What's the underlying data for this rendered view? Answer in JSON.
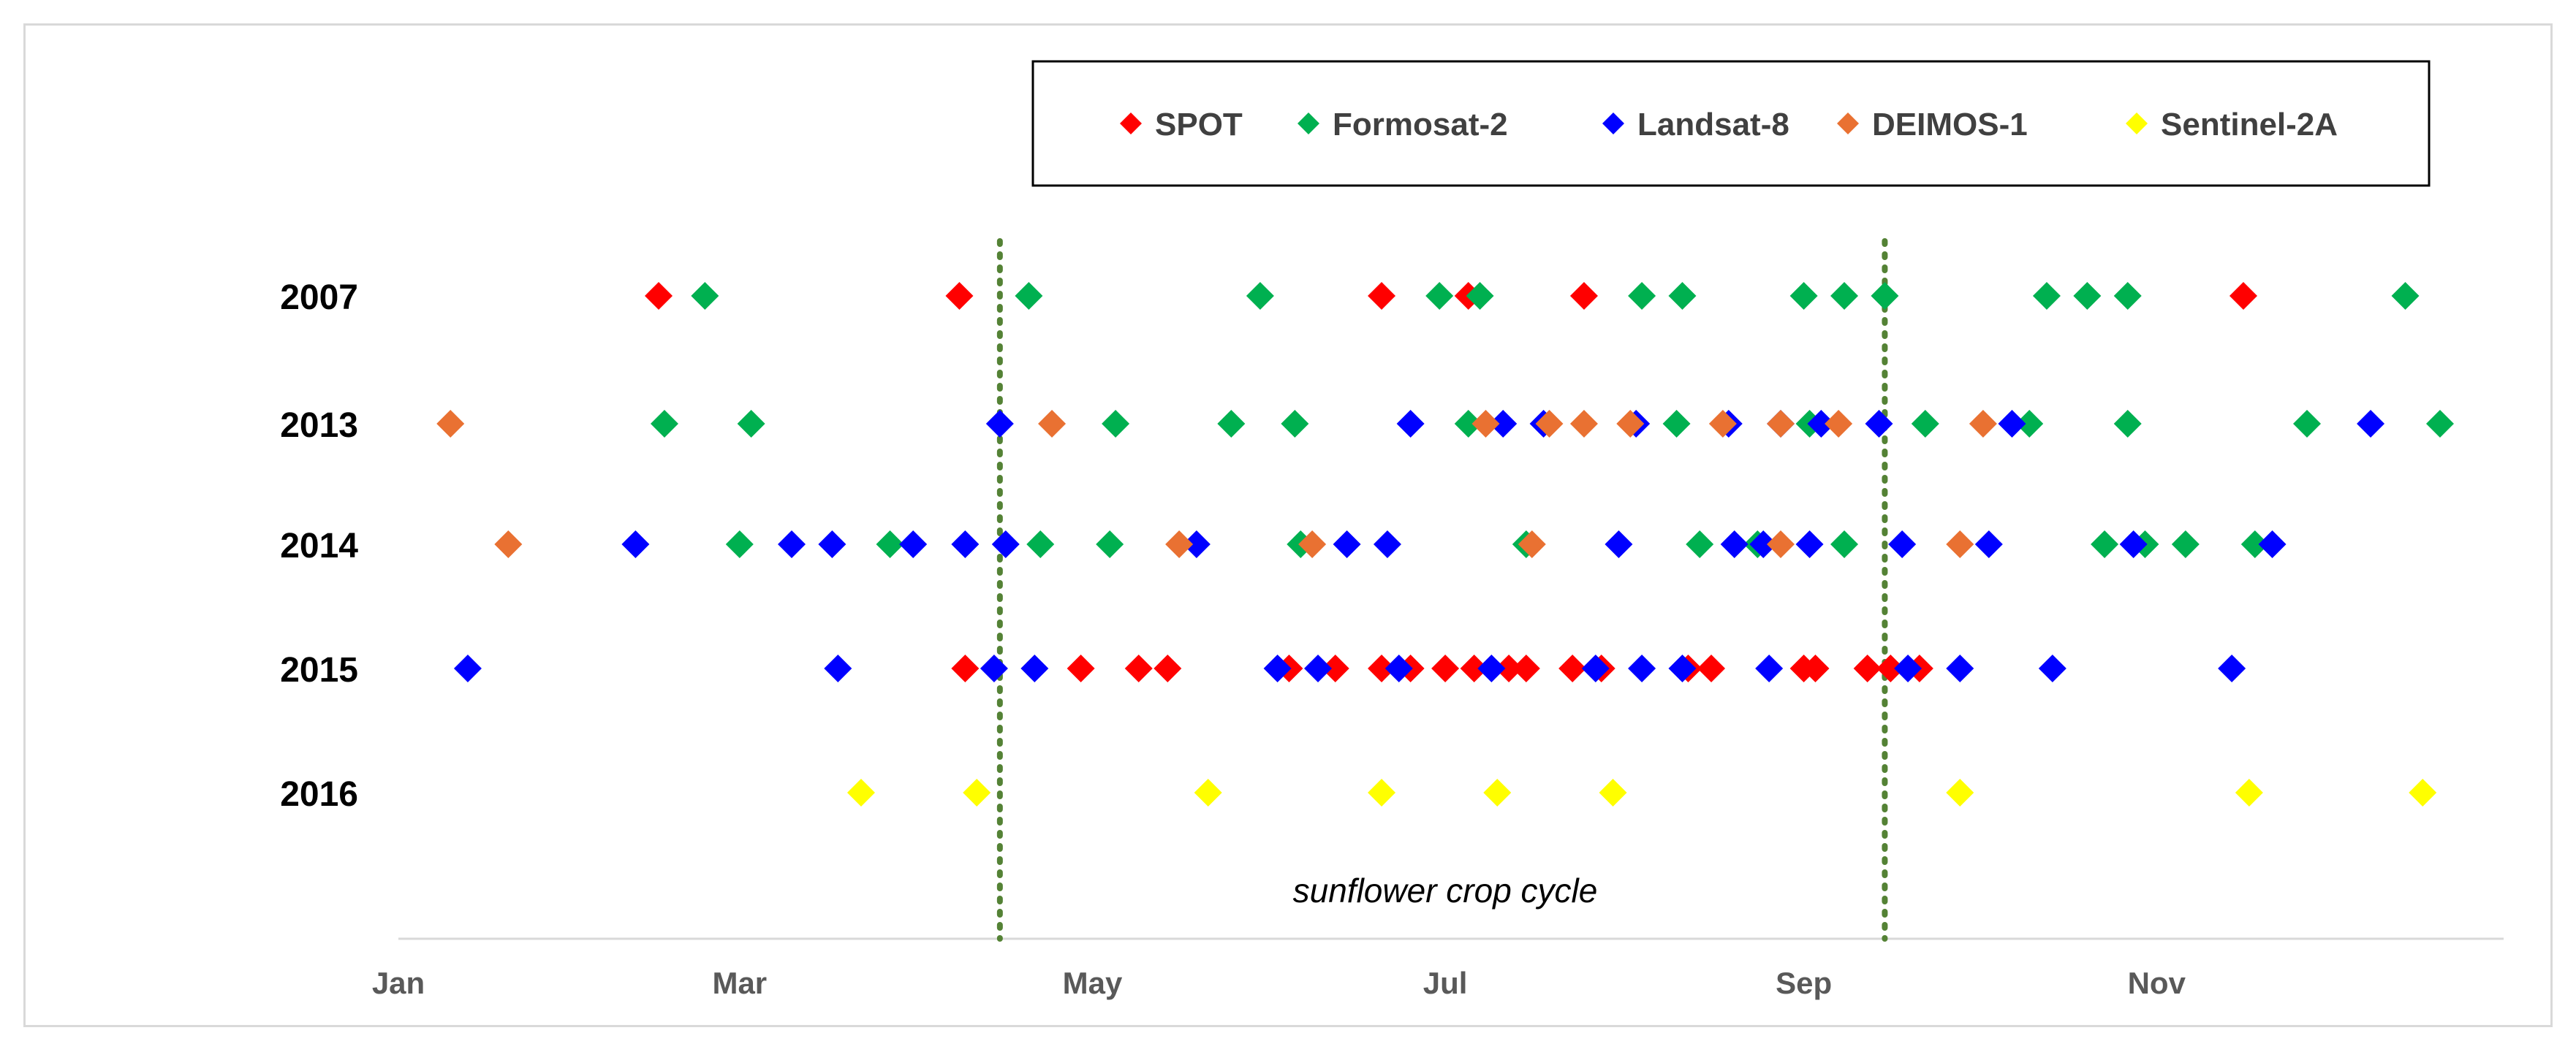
{
  "chart_data": {
    "type": "scatter",
    "title": "",
    "xlabel": "",
    "ylabel": "",
    "x_unit": "day of year",
    "xlim": [
      1,
      365
    ],
    "x_ticks": [
      {
        "label": "Jan",
        "day": 1
      },
      {
        "label": "Mar",
        "day": 60
      },
      {
        "label": "May",
        "day": 121
      },
      {
        "label": "Jul",
        "day": 182
      },
      {
        "label": "Sep",
        "day": 244
      },
      {
        "label": "Nov",
        "day": 305
      }
    ],
    "years": [
      "2007",
      "2013",
      "2014",
      "2015",
      "2016"
    ],
    "legend_position": "top-right",
    "crop_cycle": {
      "label": "sunflower crop cycle",
      "start_day": 105,
      "end_day": 258,
      "color": "#548235"
    },
    "series": [
      {
        "name": "SPOT",
        "color": "#ff0000",
        "points": {
          "2007": [
            46,
            98,
            171,
            186,
            206,
            320
          ],
          "2015": [
            99,
            119,
            129,
            134,
            155,
            163,
            171,
            176,
            182,
            187,
            193,
            196,
            204,
            209,
            224,
            228,
            246,
            255,
            259,
            244,
            264
          ]
        }
      },
      {
        "name": "Formosat-2",
        "color": "#00b050",
        "points": {
          "2007": [
            54,
            110,
            150,
            181,
            188,
            216,
            223,
            244,
            251,
            258,
            286,
            293,
            300,
            348
          ],
          "2013": [
            47,
            62,
            125,
            145,
            156,
            186,
            222,
            245,
            265,
            283,
            300,
            331,
            354
          ],
          "2014": [
            60,
            86,
            112,
            124,
            157,
            196,
            226,
            236,
            251,
            296,
            303,
            310,
            322
          ]
        }
      },
      {
        "name": "Landsat-8",
        "color": "#0000ff",
        "points": {
          "2013": [
            105,
            176,
            192,
            199,
            215,
            231,
            240,
            247,
            257,
            280,
            342
          ],
          "2014": [
            42,
            69,
            76,
            90,
            99,
            106,
            139,
            165,
            172,
            212,
            232,
            237,
            245,
            261,
            276,
            301,
            325
          ],
          "2015": [
            13,
            77,
            104,
            111,
            153,
            160,
            174,
            190,
            208,
            216,
            223,
            238,
            262,
            271,
            287,
            318
          ]
        }
      },
      {
        "name": "DEIMOS-1",
        "color": "#e97132",
        "points": {
          "2013": [
            10,
            114,
            189,
            200,
            206,
            214,
            230,
            240,
            250,
            275
          ],
          "2014": [
            20,
            136,
            159,
            197,
            240,
            271
          ]
        }
      },
      {
        "name": "Sentinel-2A",
        "color": "#ffff00",
        "points": {
          "2016": [
            81,
            101,
            141,
            171,
            191,
            211,
            271,
            321,
            351
          ]
        }
      }
    ]
  }
}
